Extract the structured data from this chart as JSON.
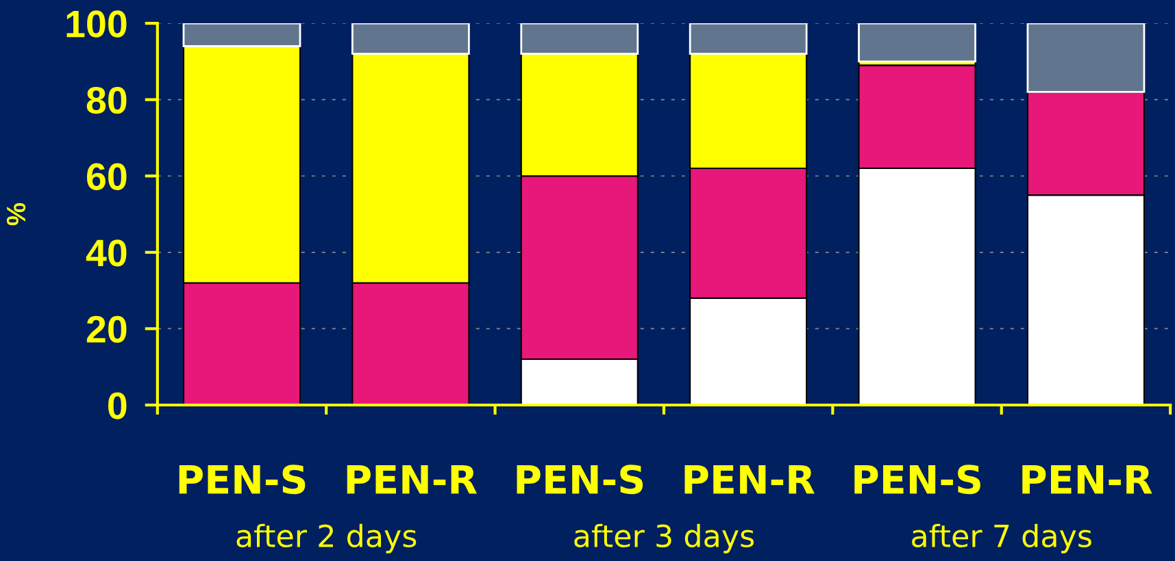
{
  "chart_data": {
    "type": "bar",
    "stacked": true,
    "ylabel": "%",
    "categories": [
      "PEN-S",
      "PEN-R",
      "PEN-S",
      "PEN-R",
      "PEN-S",
      "PEN-R"
    ],
    "series": [
      {
        "color": "#ffffff",
        "values": [
          0,
          0,
          12,
          28,
          62,
          55
        ]
      },
      {
        "color": "#e8177a",
        "values": [
          32,
          32,
          48,
          34,
          27,
          27
        ]
      },
      {
        "color": "#ffff00",
        "values": [
          62,
          60,
          32,
          30,
          1,
          0
        ]
      },
      {
        "color": "#62758f",
        "values": [
          6,
          8,
          8,
          8,
          10,
          18
        ]
      }
    ],
    "ylim": [
      0,
      100
    ],
    "yticks": [
      0,
      20,
      40,
      60,
      80,
      100
    ],
    "grid": "y",
    "annotations": [
      "after 2 days",
      "after 3 days",
      "after 7 days"
    ]
  }
}
